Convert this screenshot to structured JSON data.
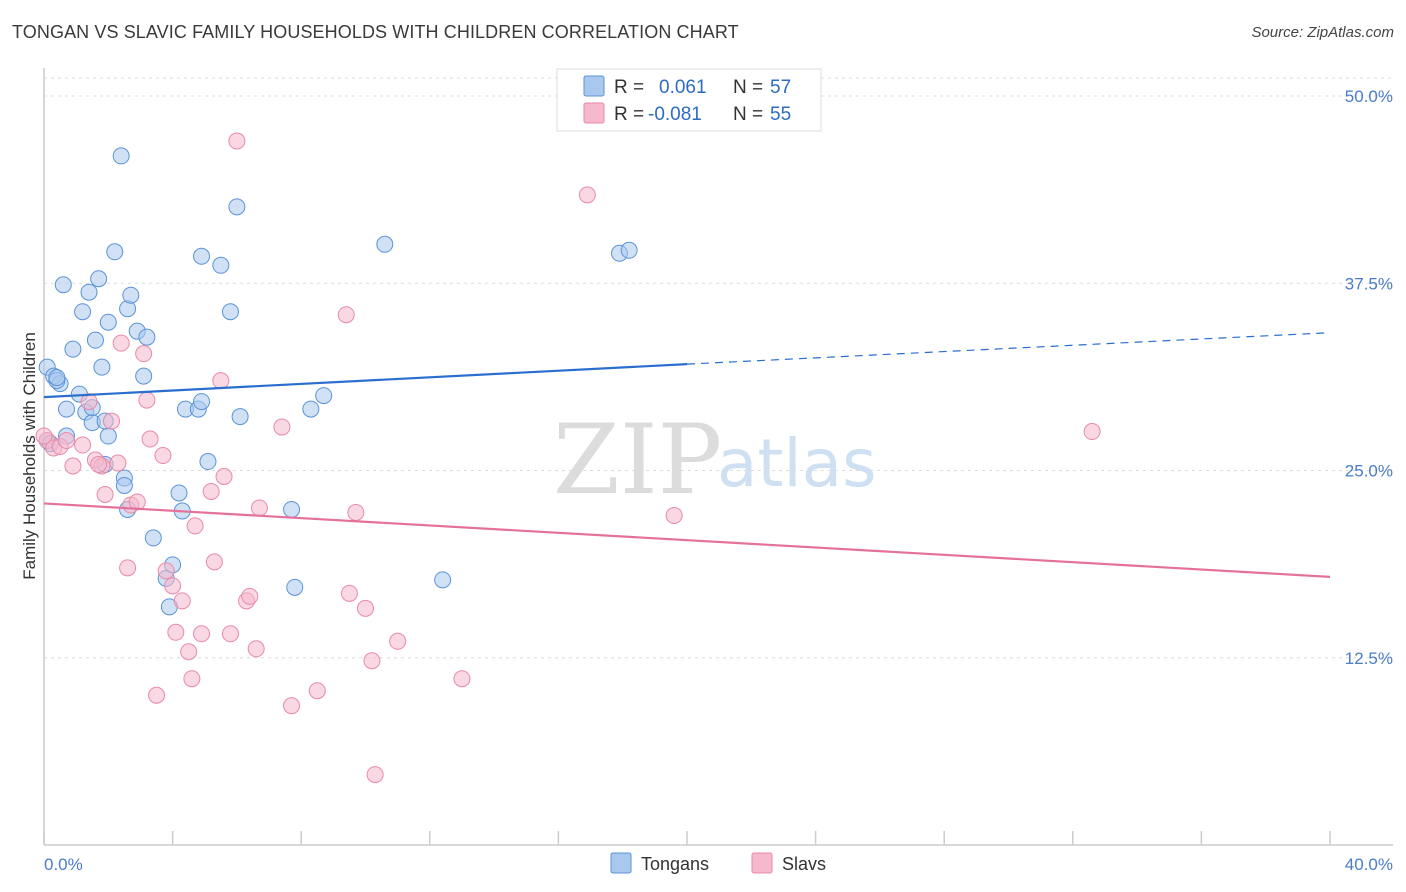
{
  "header": {
    "title": "TONGAN VS SLAVIC FAMILY HOUSEHOLDS WITH CHILDREN CORRELATION CHART",
    "source": "Source: ZipAtlas.com"
  },
  "watermark": {
    "zip": "ZIP",
    "atlas": "atlas"
  },
  "legend_top": {
    "rows": [
      {
        "r_label": "R =",
        "r_value": "0.061",
        "n_label": "N =",
        "n_value": "57",
        "color": "#a9c8ee"
      },
      {
        "r_label": "R =",
        "r_value": "-0.081",
        "n_label": "N =",
        "n_value": "55",
        "color": "#f6b8cc"
      }
    ]
  },
  "legend_bottom": {
    "items": [
      "Tongans",
      "Slavs"
    ]
  },
  "chart_data": {
    "type": "scatter",
    "title": "TONGAN VS SLAVIC FAMILY HOUSEHOLDS WITH CHILDREN CORRELATION CHART",
    "xlabel": "",
    "ylabel": "Family Households with Children",
    "xlim": [
      0,
      40
    ],
    "ylim": [
      0,
      52.5
    ],
    "x_tick_labels": [
      "0.0%",
      "40.0%"
    ],
    "y_tick_labels": [
      "12.5%",
      "25.0%",
      "37.5%",
      "50.0%"
    ],
    "y_ticks": [
      12.5,
      25.0,
      37.5,
      50.0
    ],
    "grid": true,
    "legend_placement": "top-center",
    "series": [
      {
        "name": "Tongans",
        "color": "#a9c8ee",
        "stroke": "#5b93d6",
        "trend": {
          "x": [
            0,
            20
          ],
          "y": [
            29.9,
            32.1
          ],
          "dashed_to": [
            40,
            34.2
          ],
          "color": "#2a6fcf"
        },
        "points": [
          [
            0.1,
            31.9
          ],
          [
            0.3,
            31.3
          ],
          [
            0.5,
            30.8
          ],
          [
            0.7,
            29.1
          ],
          [
            0.6,
            37.4
          ],
          [
            0.9,
            33.1
          ],
          [
            1.2,
            35.6
          ],
          [
            1.4,
            36.9
          ],
          [
            1.6,
            33.7
          ],
          [
            1.7,
            37.8
          ],
          [
            1.8,
            31.9
          ],
          [
            1.3,
            28.9
          ],
          [
            1.5,
            28.2
          ],
          [
            1.5,
            29.2
          ],
          [
            2.0,
            34.9
          ],
          [
            2.2,
            39.6
          ],
          [
            2.5,
            24.5
          ],
          [
            2.6,
            35.8
          ],
          [
            2.7,
            36.7
          ],
          [
            2.9,
            34.3
          ],
          [
            3.1,
            31.3
          ],
          [
            3.2,
            33.9
          ],
          [
            2.4,
            46.0
          ],
          [
            2.0,
            27.3
          ],
          [
            1.9,
            28.3
          ],
          [
            2.5,
            24.0
          ],
          [
            1.1,
            30.1
          ],
          [
            0.7,
            27.3
          ],
          [
            1.9,
            25.4
          ],
          [
            3.4,
            20.5
          ],
          [
            3.8,
            17.8
          ],
          [
            3.9,
            15.9
          ],
          [
            4.0,
            18.7
          ],
          [
            4.2,
            23.5
          ],
          [
            4.3,
            22.3
          ],
          [
            4.4,
            29.1
          ],
          [
            4.8,
            29.1
          ],
          [
            4.9,
            29.6
          ],
          [
            4.9,
            39.3
          ],
          [
            5.1,
            25.6
          ],
          [
            5.5,
            38.7
          ],
          [
            5.8,
            35.6
          ],
          [
            6.0,
            42.6
          ],
          [
            6.1,
            28.6
          ],
          [
            7.7,
            22.4
          ],
          [
            7.8,
            17.2
          ],
          [
            8.3,
            29.1
          ],
          [
            8.7,
            30.0
          ],
          [
            10.6,
            40.1
          ],
          [
            12.4,
            17.7
          ],
          [
            17.9,
            39.5
          ],
          [
            18.2,
            39.7
          ],
          [
            0.4,
            31.0
          ],
          [
            0.1,
            27.0
          ],
          [
            0.2,
            26.8
          ],
          [
            0.4,
            31.2
          ],
          [
            2.6,
            22.4
          ]
        ]
      },
      {
        "name": "Slavs",
        "color": "#f6b8cc",
        "stroke": "#e88aa8",
        "trend": {
          "x": [
            0,
            40
          ],
          "y": [
            22.8,
            17.9
          ],
          "color": "#e5719a"
        },
        "points": [
          [
            0.1,
            27.0
          ],
          [
            0.3,
            26.5
          ],
          [
            0.5,
            26.6
          ],
          [
            0.7,
            27.0
          ],
          [
            0.9,
            25.3
          ],
          [
            1.2,
            26.7
          ],
          [
            1.4,
            29.6
          ],
          [
            1.6,
            25.7
          ],
          [
            1.8,
            25.3
          ],
          [
            1.9,
            23.4
          ],
          [
            2.1,
            28.3
          ],
          [
            2.3,
            25.5
          ],
          [
            2.4,
            33.5
          ],
          [
            2.6,
            18.5
          ],
          [
            2.7,
            22.7
          ],
          [
            2.9,
            22.9
          ],
          [
            3.1,
            32.8
          ],
          [
            3.2,
            29.7
          ],
          [
            3.3,
            27.1
          ],
          [
            3.5,
            10.0
          ],
          [
            3.7,
            26.0
          ],
          [
            3.8,
            18.3
          ],
          [
            4.0,
            17.3
          ],
          [
            4.1,
            14.2
          ],
          [
            4.3,
            16.3
          ],
          [
            4.5,
            12.9
          ],
          [
            4.6,
            11.1
          ],
          [
            4.7,
            21.3
          ],
          [
            4.9,
            14.1
          ],
          [
            5.2,
            23.6
          ],
          [
            5.3,
            18.9
          ],
          [
            5.5,
            31.0
          ],
          [
            5.6,
            24.6
          ],
          [
            5.8,
            14.1
          ],
          [
            6.0,
            47.0
          ],
          [
            6.3,
            16.3
          ],
          [
            6.4,
            16.6
          ],
          [
            6.6,
            13.1
          ],
          [
            6.7,
            22.5
          ],
          [
            7.4,
            27.9
          ],
          [
            7.7,
            9.3
          ],
          [
            8.5,
            10.3
          ],
          [
            9.4,
            35.4
          ],
          [
            9.5,
            16.8
          ],
          [
            9.7,
            22.2
          ],
          [
            10.0,
            15.8
          ],
          [
            10.2,
            12.3
          ],
          [
            10.3,
            4.7
          ],
          [
            11.0,
            13.6
          ],
          [
            13.0,
            11.1
          ],
          [
            16.9,
            43.4
          ],
          [
            19.6,
            22.0
          ],
          [
            32.6,
            27.6
          ],
          [
            0.0,
            27.3
          ],
          [
            1.7,
            25.4
          ]
        ]
      }
    ]
  }
}
